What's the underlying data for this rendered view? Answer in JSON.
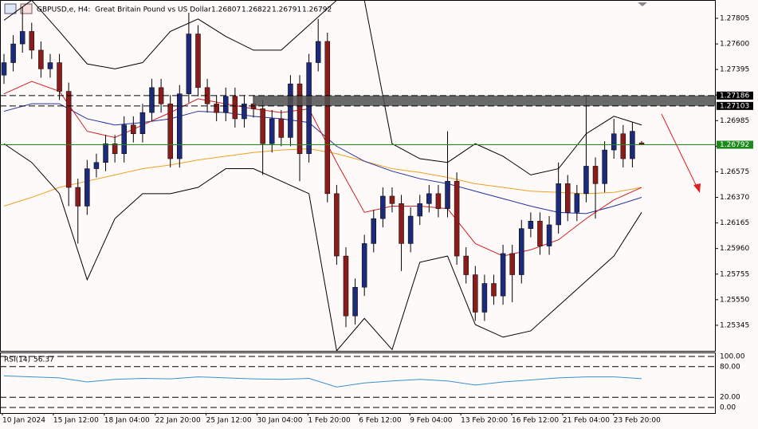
{
  "chart_data": {
    "type": "candlestick",
    "title": "GBPUSD,e, H4:  Great Britain Pound vs US Dollar",
    "open": [
      1.2735,
      1.2745,
      1.276,
      1.277,
      1.2755,
      1.274,
      1.2745,
      1.2722,
      1.2645,
      1.263,
      1.266,
      1.2665,
      1.268,
      1.2672,
      1.2695,
      1.2688,
      1.2705,
      1.2725,
      1.2712,
      1.2668,
      1.272,
      1.2768,
      1.2725,
      1.2712,
      1.2705,
      1.2718,
      1.27,
      1.2712,
      1.2708,
      1.268,
      1.27,
      1.2685,
      1.2728,
      1.2672,
      1.2745,
      1.2762,
      1.264,
      1.259,
      1.2542,
      1.2565,
      1.26,
      1.262,
      1.2638,
      1.2632,
      1.26,
      1.2622,
      1.2632,
      1.264,
      1.2628,
      1.265,
      1.259,
      1.2575,
      1.2545,
      1.2568,
      1.2558,
      1.2592,
      1.2575,
      1.2612,
      1.2618,
      1.2598,
      1.2615,
      1.2648,
      1.2625,
      1.264,
      1.2662,
      1.2648,
      1.2675,
      1.2688,
      1.2668,
      1.26807
    ],
    "high": [
      1.2752,
      1.2767,
      1.279,
      1.2777,
      1.2762,
      1.2752,
      1.2752,
      1.2729,
      1.2652,
      1.2667,
      1.2672,
      1.2687,
      1.2687,
      1.2702,
      1.2702,
      1.2712,
      1.2732,
      1.2732,
      1.2719,
      1.2727,
      1.2785,
      1.2775,
      1.2732,
      1.2719,
      1.2725,
      1.2725,
      1.2719,
      1.2719,
      1.2715,
      1.2707,
      1.2707,
      1.2735,
      1.2735,
      1.2752,
      1.278,
      1.2769,
      1.2647,
      1.2597,
      1.2572,
      1.2607,
      1.2627,
      1.2645,
      1.2645,
      1.2639,
      1.2629,
      1.2639,
      1.2647,
      1.2647,
      1.269,
      1.2657,
      1.2597,
      1.2582,
      1.2575,
      1.2575,
      1.2599,
      1.2599,
      1.2619,
      1.2625,
      1.2625,
      1.2622,
      1.2665,
      1.2655,
      1.2647,
      1.2718,
      1.2669,
      1.2682,
      1.27,
      1.2695,
      1.2697,
      1.26822
    ],
    "low": [
      1.2728,
      1.2738,
      1.2753,
      1.2748,
      1.2733,
      1.2733,
      1.2715,
      1.263,
      1.26,
      1.2623,
      1.2653,
      1.2658,
      1.2665,
      1.2665,
      1.2681,
      1.2681,
      1.2698,
      1.2705,
      1.2661,
      1.2661,
      1.2713,
      1.2718,
      1.2705,
      1.2698,
      1.2698,
      1.2693,
      1.2693,
      1.2701,
      1.2655,
      1.2673,
      1.2678,
      1.2678,
      1.265,
      1.2665,
      1.2738,
      1.2633,
      1.2583,
      1.2533,
      1.2535,
      1.2558,
      1.2593,
      1.2613,
      1.2625,
      1.2578,
      1.2593,
      1.2615,
      1.2625,
      1.2621,
      1.2621,
      1.2583,
      1.2568,
      1.2538,
      1.2538,
      1.2551,
      1.2551,
      1.2553,
      1.2568,
      1.2605,
      1.2591,
      1.2591,
      1.2608,
      1.2618,
      1.2618,
      1.2633,
      1.262,
      1.2641,
      1.2668,
      1.2661,
      1.2661,
      1.26791
    ],
    "close": [
      1.2745,
      1.276,
      1.277,
      1.2755,
      1.274,
      1.2745,
      1.2722,
      1.2645,
      1.263,
      1.266,
      1.2665,
      1.268,
      1.2672,
      1.2695,
      1.2688,
      1.2705,
      1.2725,
      1.2712,
      1.2668,
      1.272,
      1.2768,
      1.2725,
      1.2712,
      1.2705,
      1.2718,
      1.27,
      1.2712,
      1.2708,
      1.268,
      1.27,
      1.2685,
      1.2728,
      1.2672,
      1.2745,
      1.2762,
      1.264,
      1.259,
      1.2542,
      1.2565,
      1.26,
      1.262,
      1.2638,
      1.2632,
      1.26,
      1.2622,
      1.2632,
      1.264,
      1.2628,
      1.265,
      1.259,
      1.2575,
      1.2545,
      1.2568,
      1.2558,
      1.2592,
      1.2575,
      1.2612,
      1.2618,
      1.2598,
      1.2615,
      1.2648,
      1.2625,
      1.264,
      1.2662,
      1.2648,
      1.2675,
      1.2688,
      1.2668,
      1.269,
      1.26792
    ],
    "up_color": "#1c2a7a",
    "down_color": "#8b1c1c",
    "ylim": [
      1.2514,
      1.27952
    ],
    "yticks": [
      1.27805,
      {
        "value": 1.276,
        "label": "1.27600"
      },
      1.27395,
      {
        "value": 1.2719,
        "label": "1.27190"
      },
      1.26985,
      {
        "value": 1.2678,
        "label": "1.26780"
      },
      1.26575,
      {
        "value": 1.2637,
        "label": "1.26370"
      },
      1.26165,
      {
        "value": 1.2596,
        "label": "1.25960"
      },
      1.25755,
      {
        "value": 1.2555,
        "label": "1.25550"
      },
      1.25345
    ],
    "levels": [
      1.27186,
      1.27103
    ],
    "overlays": [
      {
        "color": "#f0a020",
        "values": [
          1.263,
          1.2637,
          1.2645,
          1.265,
          1.2655,
          1.266,
          1.2663,
          1.2667,
          1.267,
          1.2673,
          1.2675,
          1.2676,
          1.2672,
          1.2666,
          1.266,
          1.2657,
          1.2653,
          1.2648,
          1.2645,
          1.2642,
          1.2641,
          1.264,
          1.2641,
          1.2645
        ]
      },
      {
        "color": "#2030a0",
        "values": [
          1.2706,
          1.2712,
          1.2712,
          1.27,
          1.2695,
          1.2697,
          1.27,
          1.2706,
          1.2705,
          1.2702,
          1.27,
          1.2697,
          1.2678,
          1.2666,
          1.2658,
          1.2652,
          1.2648,
          1.2642,
          1.2636,
          1.263,
          1.2625,
          1.2624,
          1.263,
          1.2637
        ]
      },
      {
        "color": "#d02020",
        "values": [
          1.272,
          1.273,
          1.2722,
          1.269,
          1.2685,
          1.2695,
          1.2705,
          1.2716,
          1.2712,
          1.2708,
          1.2705,
          1.2708,
          1.2665,
          1.2625,
          1.263,
          1.263,
          1.2628,
          1.26,
          1.259,
          1.2595,
          1.2603,
          1.262,
          1.2635,
          1.2645
        ]
      },
      {
        "color": "#000000",
        "values": [
          1.2779,
          1.2795,
          1.277,
          1.2744,
          1.274,
          1.2745,
          1.277,
          1.278,
          1.2766,
          1.2755,
          1.2755,
          1.2775,
          1.2795,
          1.2795,
          1.268,
          1.2668,
          1.2665,
          1.268,
          1.267,
          1.2655,
          1.266,
          1.2688,
          1.2702,
          1.2695
        ]
      },
      {
        "color": "#000000",
        "values": [
          1.268,
          1.2665,
          1.264,
          1.2571,
          1.262,
          1.264,
          1.264,
          1.2645,
          1.266,
          1.266,
          1.265,
          1.264,
          1.2514,
          1.254,
          1.2515,
          1.2585,
          1.259,
          1.2535,
          1.2525,
          1.253,
          1.255,
          1.257,
          1.259,
          1.2625
        ]
      }
    ],
    "rsi": {
      "label": "RSI(14)",
      "color": "#3a8fd0",
      "values": [
        62,
        60,
        58,
        50,
        55,
        57,
        56,
        60,
        58,
        56,
        55,
        57,
        40,
        48,
        52,
        55,
        52,
        44,
        50,
        54,
        58,
        60,
        60,
        56.37
      ],
      "ylim": [
        0,
        100
      ],
      "yticks": [
        {
          "value": 100,
          "label": "100.00"
        },
        {
          "value": 80,
          "label": "80.00"
        },
        {
          "value": 20,
          "label": "20.00"
        },
        {
          "value": 0,
          "label": "0.00"
        }
      ]
    },
    "date_labels": [
      "10 Jan 2024",
      "15 Jan 12:00",
      "18 Jan 04:00",
      "22 Jan 20:00",
      "25 Jan 12:00",
      "30 Jan 04:00",
      "1 Feb 20:00",
      "6 Feb 12:00",
      "9 Feb 04:00",
      "13 Feb 20:00",
      "16 Feb 12:00",
      "21 Feb 04:00",
      "23 Feb 20:00"
    ]
  }
}
